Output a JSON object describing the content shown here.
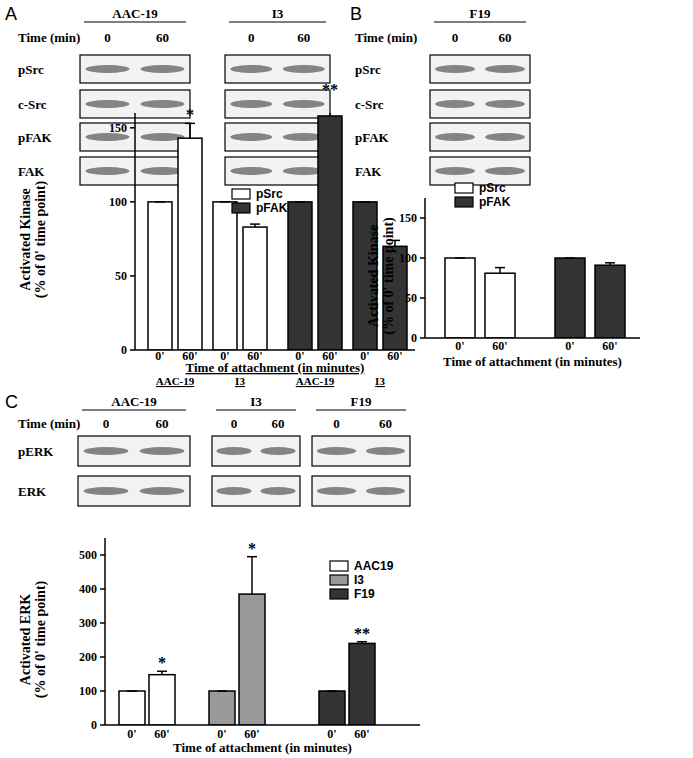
{
  "chart_data": [
    {
      "type": "bar",
      "panel": "A",
      "categories": [
        "0'",
        "60'",
        "0'",
        "60'",
        "0'",
        "60'",
        "0'",
        "60'"
      ],
      "group_labels": [
        "AAC-19",
        "I3",
        "AAC-19",
        "I3"
      ],
      "x_label": "Time of attachment (in minutes)",
      "y_label": [
        "Activated Kinase",
        "(% of 0' time point)"
      ],
      "ylim": [
        0,
        160
      ],
      "yticks": [
        0,
        50,
        100,
        150
      ],
      "grid": false,
      "series": [
        {
          "name": "pSrc",
          "color": "#ffffff",
          "values": [
            100,
            143,
            100,
            83,
            null,
            null,
            null,
            null
          ],
          "errors": [
            0,
            10,
            0,
            2,
            null,
            null,
            null,
            null
          ],
          "significance": [
            null,
            "*",
            null,
            null,
            null,
            null,
            null,
            null
          ]
        },
        {
          "name": "pFAK",
          "color": "#333333",
          "values": [
            null,
            null,
            null,
            null,
            100,
            158,
            100,
            70
          ],
          "errors": [
            null,
            null,
            null,
            null,
            0,
            12,
            0,
            4
          ],
          "significance": [
            null,
            null,
            null,
            null,
            null,
            "**",
            null,
            null
          ]
        }
      ]
    },
    {
      "type": "bar",
      "panel": "B",
      "categories": [
        "0'",
        "60'",
        "0'",
        "60'"
      ],
      "x_label": "Time of attachment (in minutes)",
      "y_label": [
        "Activated Kinase",
        "(% of 0' time point)"
      ],
      "ylim": [
        0,
        175
      ],
      "yticks": [
        0,
        50,
        100,
        150
      ],
      "grid": false,
      "series": [
        {
          "name": "pSrc",
          "color": "#ffffff",
          "values": [
            100,
            81,
            null,
            null
          ],
          "errors": [
            0,
            7,
            null,
            null
          ]
        },
        {
          "name": "pFAK",
          "color": "#333333",
          "values": [
            null,
            null,
            100,
            91
          ],
          "errors": [
            null,
            null,
            0,
            3
          ]
        }
      ]
    },
    {
      "type": "bar",
      "panel": "C",
      "categories": [
        "0'",
        "60'",
        "0'",
        "60'",
        "0'",
        "60'"
      ],
      "x_label": "Time of attachment (in minutes)",
      "y_label": [
        "Activated ERK",
        "(% of 0' time point)"
      ],
      "ylim": [
        0,
        550
      ],
      "yticks": [
        0,
        100,
        200,
        300,
        400,
        500
      ],
      "grid": false,
      "series": [
        {
          "name": "AAC19",
          "color": "#ffffff",
          "values": [
            100,
            148,
            null,
            null,
            null,
            null
          ],
          "errors": [
            0,
            10,
            null,
            null,
            null,
            null
          ],
          "significance": [
            null,
            "*",
            null,
            null,
            null,
            null
          ]
        },
        {
          "name": "I3",
          "color": "#999999",
          "values": [
            null,
            null,
            100,
            385,
            null,
            null
          ],
          "errors": [
            null,
            null,
            0,
            110,
            null,
            null
          ],
          "significance": [
            null,
            null,
            null,
            "*",
            null,
            null
          ]
        },
        {
          "name": "F19",
          "color": "#333333",
          "values": [
            null,
            null,
            null,
            null,
            100,
            240
          ],
          "errors": [
            null,
            null,
            null,
            null,
            0,
            5
          ],
          "significance": [
            null,
            null,
            null,
            null,
            null,
            "**"
          ]
        }
      ]
    }
  ],
  "blots": [
    {
      "panel": "A",
      "time_label": "Time (min)",
      "groups": [
        {
          "label": "AAC-19",
          "times": [
            0,
            60
          ]
        },
        {
          "label": "I3",
          "times": [
            0,
            60
          ]
        }
      ],
      "rows": [
        "pSrc",
        "c-Src",
        "pFAK",
        "FAK"
      ]
    },
    {
      "panel": "B",
      "time_label": "Time (min)",
      "groups": [
        {
          "label": "F19",
          "times": [
            0,
            60
          ]
        }
      ],
      "rows": [
        "pSrc",
        "c-Src",
        "pFAK",
        "FAK"
      ]
    },
    {
      "panel": "C",
      "time_label": "Time (min)",
      "groups": [
        {
          "label": "AAC-19",
          "times": [
            0,
            60
          ]
        },
        {
          "label": "I3",
          "times": [
            0,
            60
          ]
        },
        {
          "label": "F19",
          "times": [
            0,
            60
          ]
        }
      ],
      "rows": [
        "pERK",
        "ERK"
      ]
    }
  ]
}
